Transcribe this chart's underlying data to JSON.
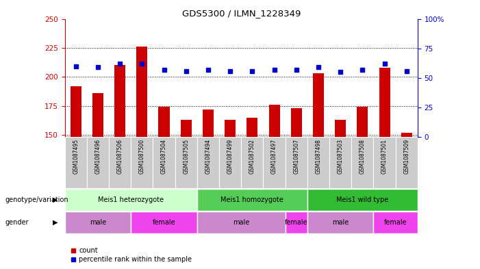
{
  "title": "GDS5300 / ILMN_1228349",
  "samples": [
    "GSM1087495",
    "GSM1087496",
    "GSM1087506",
    "GSM1087500",
    "GSM1087504",
    "GSM1087505",
    "GSM1087494",
    "GSM1087499",
    "GSM1087502",
    "GSM1087497",
    "GSM1087507",
    "GSM1087498",
    "GSM1087503",
    "GSM1087508",
    "GSM1087501",
    "GSM1087509"
  ],
  "counts": [
    192,
    186,
    210,
    226,
    174,
    163,
    172,
    163,
    165,
    176,
    173,
    203,
    163,
    174,
    208,
    152
  ],
  "percentiles": [
    60,
    59,
    62,
    62,
    57,
    56,
    57,
    56,
    56,
    57,
    57,
    59,
    55,
    57,
    62,
    56
  ],
  "ylim_left": [
    148,
    250
  ],
  "ylim_right": [
    0,
    100
  ],
  "yticks_left": [
    150,
    175,
    200,
    225,
    250
  ],
  "yticks_right": [
    0,
    25,
    50,
    75,
    100
  ],
  "bar_color": "#cc0000",
  "dot_color": "#0000cc",
  "genotype_groups": [
    {
      "label": "Meis1 heterozygote",
      "start": 0,
      "end": 5,
      "color": "#ccffcc"
    },
    {
      "label": "Meis1 homozygote",
      "start": 6,
      "end": 10,
      "color": "#55cc55"
    },
    {
      "label": "Meis1 wild type",
      "start": 11,
      "end": 15,
      "color": "#33bb33"
    }
  ],
  "gender_groups": [
    {
      "label": "male",
      "start": 0,
      "end": 2,
      "color": "#cc88cc"
    },
    {
      "label": "female",
      "start": 3,
      "end": 5,
      "color": "#ee44ee"
    },
    {
      "label": "male",
      "start": 6,
      "end": 9,
      "color": "#cc88cc"
    },
    {
      "label": "female",
      "start": 10,
      "end": 10,
      "color": "#ee44ee"
    },
    {
      "label": "male",
      "start": 11,
      "end": 13,
      "color": "#cc88cc"
    },
    {
      "label": "female",
      "start": 14,
      "end": 15,
      "color": "#ee44ee"
    }
  ],
  "legend_labels": [
    "count",
    "percentile rank within the sample"
  ],
  "annotation_left": "genotype/variation",
  "annotation_gender": "gender",
  "bg_color": "#ffffff",
  "plot_bg": "#ffffff",
  "tick_label_color_left": "#cc0000",
  "tick_label_color_right": "#0000cc",
  "sample_bg": "#cccccc",
  "ytick_right_labels": [
    "0",
    "25",
    "50",
    "75",
    "100%"
  ]
}
